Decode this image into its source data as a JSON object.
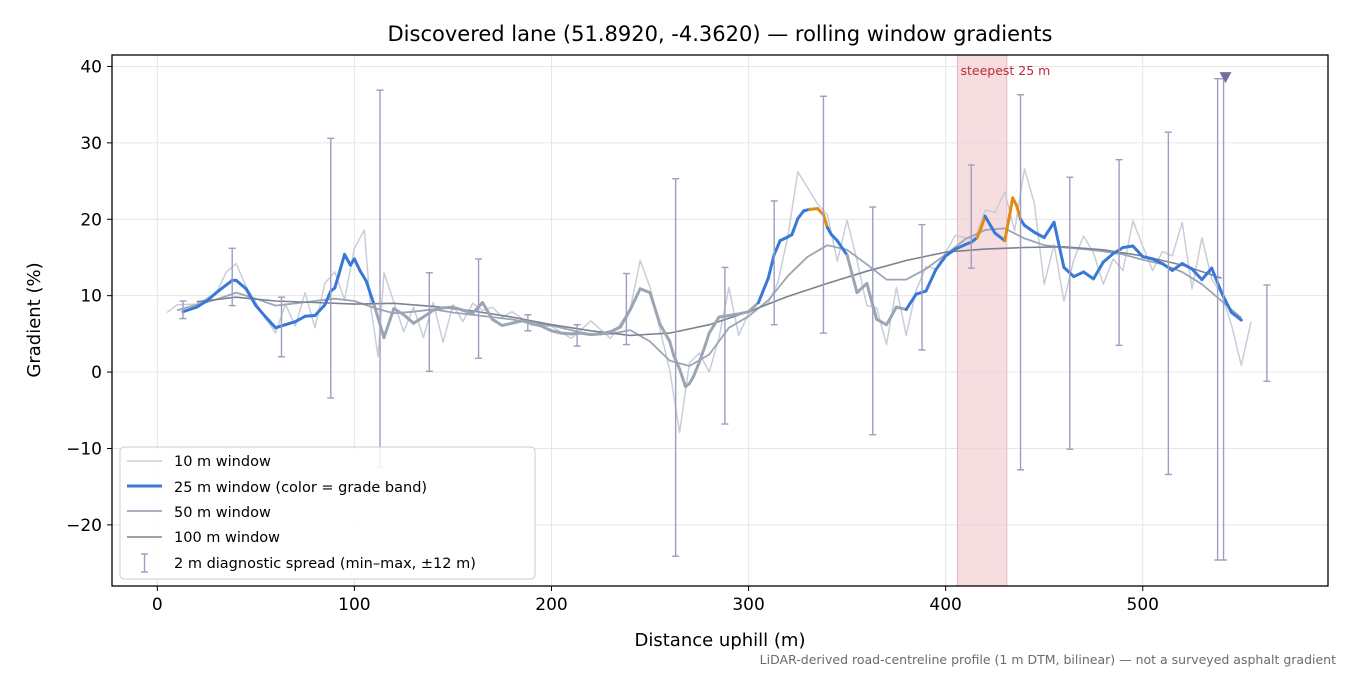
{
  "chart_data": {
    "type": "line",
    "title": "Discovered lane (51.8920, -4.3620) — rolling window gradients",
    "xlabel": "Distance uphill (m)",
    "ylabel": "Gradient (%)",
    "xlim": [
      -23,
      594
    ],
    "ylim": [
      -28,
      41.5
    ],
    "xticks": [
      0,
      100,
      200,
      300,
      400,
      500
    ],
    "xtick_labels": [
      "0",
      "100",
      "200",
      "300",
      "400",
      "500"
    ],
    "yticks": [
      -20,
      -10,
      0,
      10,
      20,
      30,
      40
    ],
    "ytick_labels": [
      "−20",
      "−10",
      "0",
      "10",
      "20",
      "30",
      "40"
    ],
    "grid": true,
    "legend_position": "lower-left",
    "colors": {
      "w10": "#c8ced8",
      "w25_blue": "#3a78d8",
      "w25_orange": "#e08c12",
      "w50": "#9ba6b4",
      "w100": "#7c8292",
      "errbar": "#9f9cc0",
      "highlight": "#f2d2d6",
      "steep_text": "#c0283a",
      "marker": "#7a6aa0"
    },
    "highlight": {
      "x0": 406,
      "x1": 431,
      "label": "steepest 25 m"
    },
    "marker": {
      "x": 542,
      "y": 38.6
    },
    "legend": [
      {
        "key": "w10",
        "label": "10 m window"
      },
      {
        "key": "w25",
        "label": "25 m window (color = grade band)"
      },
      {
        "key": "w50",
        "label": "50 m window"
      },
      {
        "key": "w100",
        "label": "100 m window"
      },
      {
        "key": "err",
        "label": "2 m diagnostic spread (min–max, ±12 m)"
      }
    ],
    "note": "LiDAR-derived road-centreline profile (1 m DTM, bilinear) — not a surveyed asphalt gradient",
    "series": [
      {
        "key": "w10",
        "x": [
          5,
          10,
          20,
          30,
          35,
          40,
          45,
          50,
          55,
          60,
          65,
          70,
          75,
          80,
          85,
          90,
          95,
          100,
          105,
          108,
          112,
          115,
          120,
          125,
          130,
          135,
          140,
          145,
          150,
          155,
          160,
          165,
          170,
          175,
          180,
          190,
          200,
          210,
          220,
          230,
          240,
          245,
          250,
          255,
          260,
          265,
          270,
          275,
          280,
          285,
          290,
          295,
          300,
          310,
          315,
          320,
          325,
          330,
          335,
          340,
          345,
          350,
          355,
          360,
          365,
          370,
          375,
          380,
          385,
          390,
          395,
          400,
          405,
          410,
          415,
          420,
          425,
          430,
          435,
          440,
          445,
          450,
          455,
          460,
          465,
          470,
          475,
          480,
          485,
          490,
          495,
          500,
          505,
          510,
          515,
          520,
          525,
          530,
          535,
          540,
          545,
          550,
          555
        ],
        "y": [
          7.8,
          8.8,
          8.9,
          10.4,
          13.1,
          14.2,
          11.2,
          9.1,
          7.0,
          5.1,
          8.9,
          6.0,
          10.4,
          5.8,
          11.6,
          13.1,
          9.5,
          16.2,
          18.6,
          9.0,
          2.0,
          13.0,
          9.2,
          5.3,
          8.5,
          4.5,
          9.1,
          3.9,
          8.8,
          6.6,
          9.0,
          8.1,
          8.5,
          7.2,
          7.9,
          6.1,
          6.0,
          4.4,
          6.7,
          4.4,
          8.3,
          14.6,
          11.1,
          5.6,
          0.3,
          -7.9,
          1.2,
          2.5,
          0.0,
          4.5,
          11.1,
          4.8,
          7.7,
          9.0,
          11.8,
          17.9,
          26.2,
          24.1,
          22.0,
          20.6,
          14.5,
          19.9,
          14.6,
          8.7,
          8.4,
          3.6,
          11.1,
          4.8,
          10.7,
          13.8,
          13.5,
          15.7,
          17.9,
          17.6,
          17.5,
          21.2,
          20.9,
          23.6,
          18.5,
          26.6,
          22.1,
          11.5,
          16.7,
          9.3,
          14.7,
          17.8,
          15.6,
          11.5,
          14.8,
          13.3,
          19.8,
          16.5,
          13.3,
          15.8,
          15.2,
          19.6,
          10.9,
          17.6,
          12.2,
          10.2,
          6.2,
          0.9,
          6.6
        ]
      },
      {
        "key": "w50",
        "x": [
          10,
          20,
          30,
          40,
          50,
          60,
          70,
          80,
          90,
          100,
          110,
          120,
          130,
          140,
          150,
          160,
          170,
          180,
          190,
          200,
          210,
          220,
          230,
          240,
          250,
          260,
          270,
          280,
          290,
          300,
          310,
          320,
          330,
          340,
          350,
          360,
          370,
          380,
          390,
          400,
          410,
          420,
          430,
          440,
          450,
          460,
          470,
          480,
          490,
          500,
          510,
          520,
          530,
          540,
          550
        ],
        "y": [
          8.1,
          8.8,
          9.5,
          10.4,
          9.6,
          8.7,
          9.0,
          9.3,
          9.6,
          9.3,
          8.4,
          7.7,
          7.9,
          8.2,
          7.8,
          7.5,
          7.2,
          6.9,
          6.4,
          6.1,
          5.5,
          4.9,
          5.0,
          5.5,
          4.0,
          1.5,
          0.8,
          2.3,
          5.8,
          7.3,
          9.4,
          12.6,
          15.1,
          16.6,
          16.0,
          14.1,
          12.1,
          12.1,
          13.5,
          15.4,
          17.4,
          18.6,
          18.8,
          17.5,
          16.6,
          16.3,
          16.1,
          15.8,
          15.4,
          14.7,
          14.1,
          13.1,
          11.5,
          9.3,
          7.1
        ]
      },
      {
        "key": "w100",
        "x": [
          20,
          40,
          60,
          80,
          100,
          120,
          140,
          160,
          180,
          200,
          220,
          240,
          260,
          280,
          300,
          320,
          340,
          360,
          380,
          400,
          420,
          440,
          460,
          480,
          500,
          520,
          540
        ],
        "y": [
          9.2,
          9.8,
          9.3,
          9.1,
          8.9,
          9.0,
          8.6,
          8.0,
          7.2,
          6.2,
          5.4,
          4.8,
          5.1,
          6.2,
          7.9,
          9.9,
          11.6,
          13.2,
          14.6,
          15.7,
          16.1,
          16.3,
          16.4,
          16.0,
          15.2,
          14.0,
          12.3
        ]
      },
      {
        "key": "w25",
        "x": [
          13,
          20,
          25,
          30,
          35,
          38,
          40,
          45,
          50,
          55,
          60,
          65,
          70,
          75,
          80,
          85,
          88,
          90,
          92,
          95,
          98,
          100,
          103,
          106,
          110,
          115,
          120,
          125,
          130,
          135,
          140,
          145,
          150,
          155,
          160,
          165,
          170,
          175,
          180,
          185,
          190,
          195,
          200,
          205,
          210,
          215,
          220,
          225,
          230,
          235,
          240,
          245,
          250,
          255,
          260,
          262,
          265,
          268,
          270,
          272,
          275,
          278,
          280,
          285,
          290,
          295,
          300,
          305,
          310,
          313,
          316,
          320,
          322,
          325,
          328,
          331,
          335,
          338,
          340,
          342,
          345,
          350,
          355,
          360,
          365,
          370,
          375,
          380,
          385,
          390,
          395,
          400,
          405,
          410,
          413,
          416,
          418,
          420,
          425,
          430,
          432,
          434,
          436,
          438,
          440,
          445,
          450,
          455,
          460,
          465,
          470,
          475,
          480,
          485,
          490,
          495,
          500,
          505,
          510,
          515,
          520,
          525,
          530,
          535,
          540,
          545,
          550
        ],
        "y": [
          7.9,
          8.5,
          9.3,
          10.4,
          11.4,
          12.0,
          12.0,
          10.9,
          8.7,
          7.2,
          5.8,
          6.2,
          6.6,
          7.3,
          7.4,
          8.8,
          10.6,
          11.0,
          12.7,
          15.4,
          14.0,
          14.8,
          13.2,
          11.9,
          8.8,
          4.5,
          8.3,
          7.5,
          6.4,
          7.2,
          8.1,
          8.4,
          8.5,
          8.1,
          7.7,
          9.1,
          6.9,
          6.1,
          6.4,
          6.7,
          6.4,
          6.0,
          5.4,
          5.1,
          5.0,
          5.1,
          4.9,
          5.0,
          5.3,
          5.9,
          8.2,
          10.9,
          10.4,
          6.3,
          4.0,
          2.2,
          0.4,
          -1.9,
          -1.5,
          -0.6,
          1.3,
          3.5,
          5.1,
          7.2,
          7.4,
          7.6,
          7.9,
          9.1,
          12.3,
          15.4,
          17.2,
          17.7,
          18.0,
          20.1,
          21.1,
          21.3,
          21.4,
          20.6,
          18.9,
          18.0,
          17.2,
          15.3,
          10.4,
          11.6,
          6.9,
          6.2,
          8.5,
          8.2,
          10.2,
          10.6,
          13.4,
          15.2,
          16.1,
          16.7,
          17.0,
          17.6,
          18.9,
          20.4,
          18.2,
          17.2,
          19.9,
          22.8,
          21.8,
          20.0,
          19.2,
          18.3,
          17.6,
          19.6,
          13.7,
          12.5,
          13.1,
          12.2,
          14.4,
          15.5,
          16.3,
          16.5,
          15.1,
          14.8,
          14.2,
          13.3,
          14.2,
          13.5,
          12.1,
          13.6,
          10.4,
          7.8,
          6.8
        ]
      }
    ],
    "orange_segments": [
      [
        330,
        340
      ],
      [
        415,
        420
      ],
      [
        431,
        438
      ]
    ],
    "errorbars": [
      {
        "x": 13,
        "y": 8.0,
        "min": 7.0,
        "max": 9.3
      },
      {
        "x": 38,
        "y": 12.0,
        "min": 8.7,
        "max": 16.2
      },
      {
        "x": 63,
        "y": 6.0,
        "min": 2.0,
        "max": 9.8
      },
      {
        "x": 88,
        "y": 10.6,
        "min": -3.4,
        "max": 30.6
      },
      {
        "x": 113,
        "y": 5.0,
        "min": -12.4,
        "max": 36.9
      },
      {
        "x": 138,
        "y": 7.0,
        "min": 0.1,
        "max": 13.0
      },
      {
        "x": 163,
        "y": 8.0,
        "min": 1.8,
        "max": 14.8
      },
      {
        "x": 188,
        "y": 6.5,
        "min": 5.4,
        "max": 7.5
      },
      {
        "x": 213,
        "y": 5.0,
        "min": 3.4,
        "max": 6.2
      },
      {
        "x": 238,
        "y": 6.5,
        "min": 3.6,
        "max": 12.9
      },
      {
        "x": 263,
        "y": 3.0,
        "min": -24.1,
        "max": 25.3
      },
      {
        "x": 288,
        "y": 7.0,
        "min": -6.8,
        "max": 13.7
      },
      {
        "x": 313,
        "y": 15.0,
        "min": 6.2,
        "max": 22.4
      },
      {
        "x": 338,
        "y": 21.0,
        "min": 5.1,
        "max": 36.1
      },
      {
        "x": 363,
        "y": 10.0,
        "min": -8.2,
        "max": 21.6
      },
      {
        "x": 388,
        "y": 12.0,
        "min": 2.9,
        "max": 19.3
      },
      {
        "x": 413,
        "y": 17.0,
        "min": 13.6,
        "max": 27.1
      },
      {
        "x": 438,
        "y": 20.0,
        "min": -12.8,
        "max": 36.3
      },
      {
        "x": 463,
        "y": 13.0,
        "min": -10.1,
        "max": 25.5
      },
      {
        "x": 488,
        "y": 16.0,
        "min": 3.5,
        "max": 27.8
      },
      {
        "x": 513,
        "y": 14.0,
        "min": -13.4,
        "max": 31.4
      },
      {
        "x": 538,
        "y": 12.0,
        "min": -24.6,
        "max": 38.4
      },
      {
        "x": 541,
        "y": 12.0,
        "min": -24.6,
        "max": 38.4
      },
      {
        "x": 563,
        "y": 6.0,
        "min": -1.2,
        "max": 11.4
      }
    ]
  }
}
